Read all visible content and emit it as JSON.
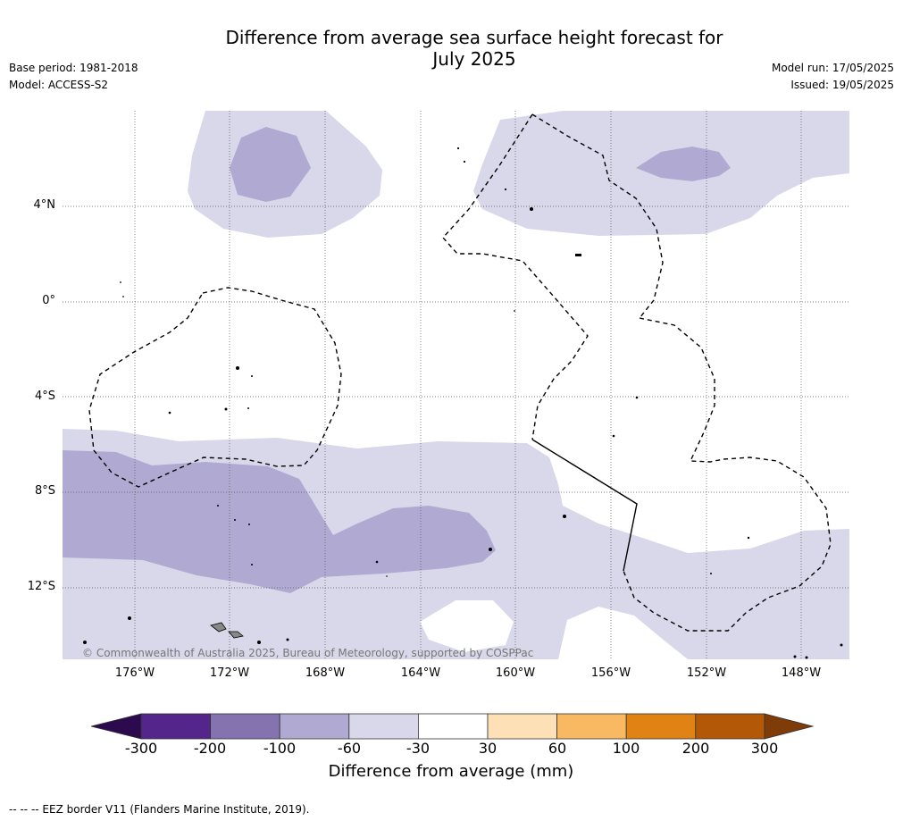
{
  "header": {
    "title_line1": "Difference from average sea surface height forecast for",
    "title_line2": "July 2025",
    "base_period": "Base period: 1981-2018",
    "model": "Model: ACCESS-S2",
    "model_run": "Model run: 17/05/2025",
    "issued": "Issued: 19/05/2025"
  },
  "map": {
    "lat_labels": [
      "4°N",
      "0°",
      "4°S",
      "8°S",
      "12°S"
    ],
    "lon_labels": [
      "176°W",
      "172°W",
      "168°W",
      "164°W",
      "160°W",
      "156°W",
      "152°W",
      "148°W"
    ],
    "copyright": "© Commonwealth of Australia 2025, Bureau of Meteorology, supported by COSPPac"
  },
  "colorbar": {
    "ticks": [
      "-300",
      "-200",
      "-100",
      "-60",
      "-30",
      "30",
      "60",
      "100",
      "200",
      "300"
    ],
    "colors": [
      "#2d0a4e",
      "#54258a",
      "#8473ae",
      "#b0aad2",
      "#d8d8ea",
      "#ffffff",
      "#fee0b6",
      "#f9b862",
      "#e08214",
      "#b35806",
      "#7f3b08"
    ],
    "label": "Difference from average (mm)"
  },
  "footnote": "--  --  -- EEZ border V11 (Flanders Marine Institute, 2019)."
}
